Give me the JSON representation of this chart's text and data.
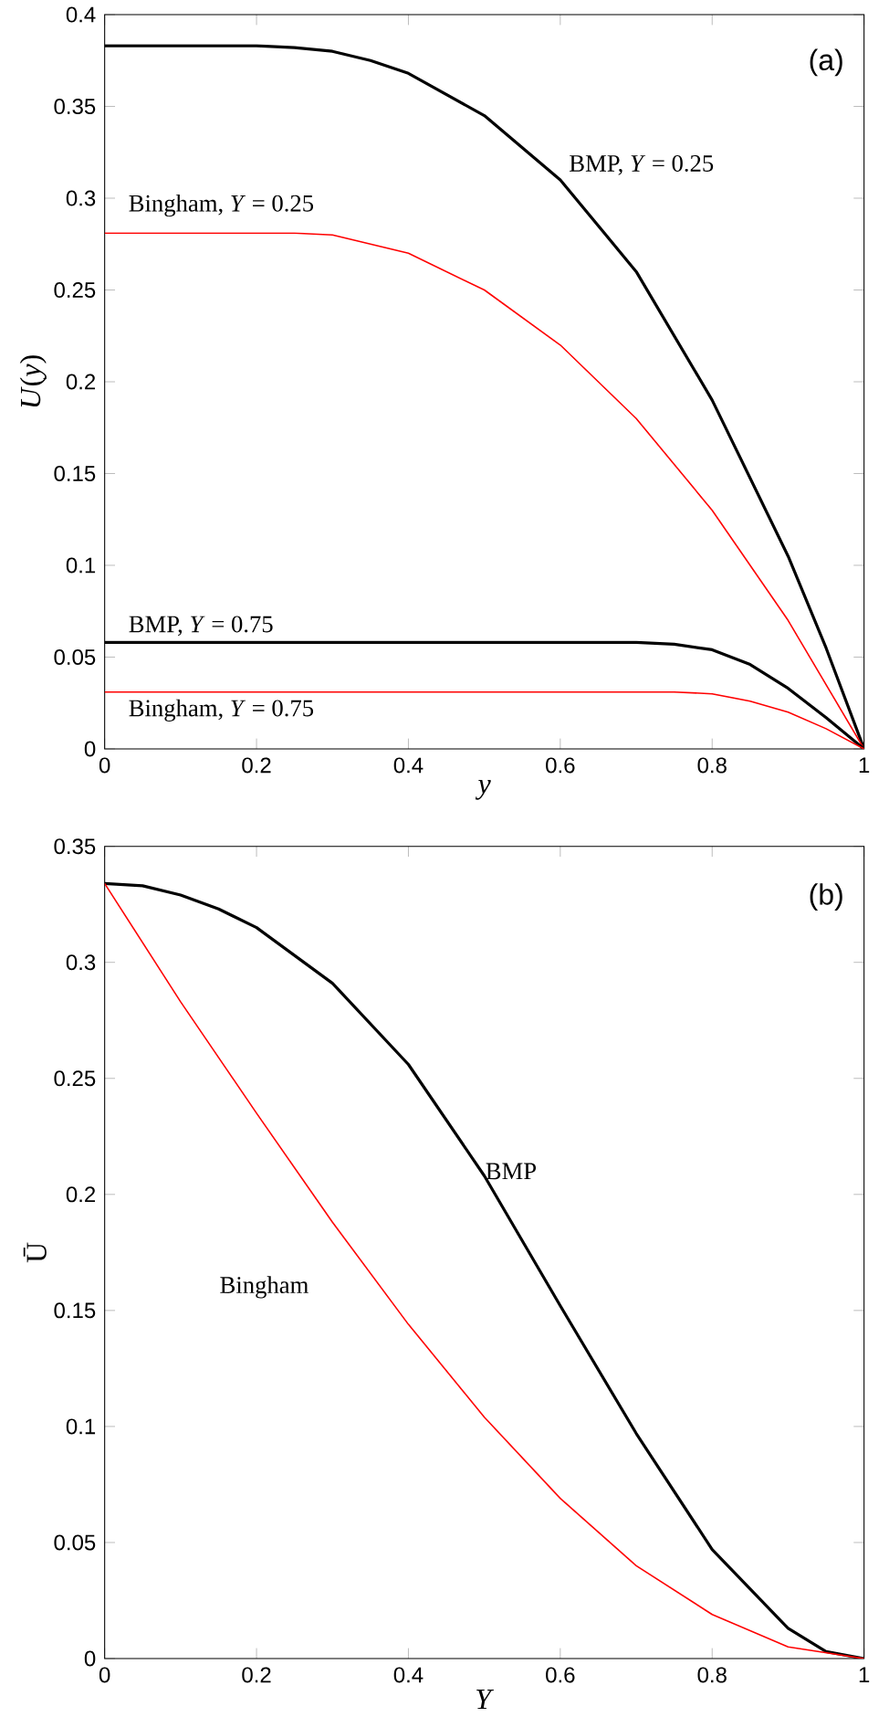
{
  "chart_data": [
    {
      "type": "line",
      "xlabel": "*y*",
      "ylabel": "*U*(*y*)",
      "annotations": [
        "(a)"
      ],
      "xlim": [
        0,
        1
      ],
      "ylim": [
        0,
        0.4
      ],
      "xticks": [
        0,
        0.2,
        0.4,
        0.6,
        0.8,
        1
      ],
      "yticks": [
        0,
        0.05,
        0.1,
        0.15,
        0.2,
        0.25,
        0.3,
        0.35,
        0.4
      ],
      "series": [
        {
          "name": "BMP, *Y* = 0.25",
          "color": "#000000",
          "x": [
            0,
            0.1,
            0.2,
            0.25,
            0.3,
            0.35,
            0.4,
            0.5,
            0.6,
            0.7,
            0.8,
            0.9,
            0.95,
            1
          ],
          "values": [
            0.383,
            0.383,
            0.383,
            0.382,
            0.38,
            0.375,
            0.368,
            0.345,
            0.31,
            0.26,
            0.19,
            0.105,
            0.055,
            0
          ]
        },
        {
          "name": "Bingham, *Y* = 0.25",
          "color": "#ff0000",
          "x": [
            0,
            0.1,
            0.2,
            0.25,
            0.3,
            0.4,
            0.5,
            0.6,
            0.7,
            0.8,
            0.9,
            1
          ],
          "values": [
            0.281,
            0.281,
            0.281,
            0.281,
            0.28,
            0.27,
            0.25,
            0.22,
            0.18,
            0.13,
            0.07,
            0
          ]
        },
        {
          "name": "BMP, *Y* = 0.75",
          "color": "#000000",
          "x": [
            0,
            0.2,
            0.4,
            0.6,
            0.7,
            0.75,
            0.8,
            0.85,
            0.9,
            0.95,
            1
          ],
          "values": [
            0.058,
            0.058,
            0.058,
            0.058,
            0.058,
            0.057,
            0.054,
            0.046,
            0.033,
            0.017,
            0
          ]
        },
        {
          "name": "Bingham, *Y* = 0.75",
          "color": "#ff0000",
          "x": [
            0,
            0.2,
            0.4,
            0.6,
            0.75,
            0.8,
            0.85,
            0.9,
            0.95,
            1
          ],
          "values": [
            0.031,
            0.031,
            0.031,
            0.031,
            0.031,
            0.03,
            0.026,
            0.02,
            0.011,
            0
          ]
        }
      ]
    },
    {
      "type": "line",
      "xlabel": "*Y*",
      "ylabel": "Ū",
      "annotations": [
        "(b)"
      ],
      "xlim": [
        0,
        1
      ],
      "ylim": [
        0,
        0.35
      ],
      "xticks": [
        0,
        0.2,
        0.4,
        0.6,
        0.8,
        1
      ],
      "yticks": [
        0,
        0.05,
        0.1,
        0.15,
        0.2,
        0.25,
        0.3,
        0.35
      ],
      "series": [
        {
          "name": "BMP",
          "color": "#000000",
          "x": [
            0,
            0.05,
            0.1,
            0.15,
            0.2,
            0.3,
            0.4,
            0.5,
            0.6,
            0.7,
            0.8,
            0.9,
            0.95,
            1
          ],
          "values": [
            0.334,
            0.333,
            0.329,
            0.323,
            0.315,
            0.291,
            0.256,
            0.208,
            0.152,
            0.097,
            0.047,
            0.013,
            0.003,
            0
          ]
        },
        {
          "name": "Bingham",
          "color": "#ff0000",
          "x": [
            0,
            0.1,
            0.2,
            0.3,
            0.4,
            0.5,
            0.6,
            0.7,
            0.8,
            0.9,
            1
          ],
          "values": [
            0.334,
            0.283,
            0.235,
            0.188,
            0.144,
            0.104,
            0.069,
            0.04,
            0.019,
            0.005,
            0
          ]
        }
      ]
    }
  ]
}
